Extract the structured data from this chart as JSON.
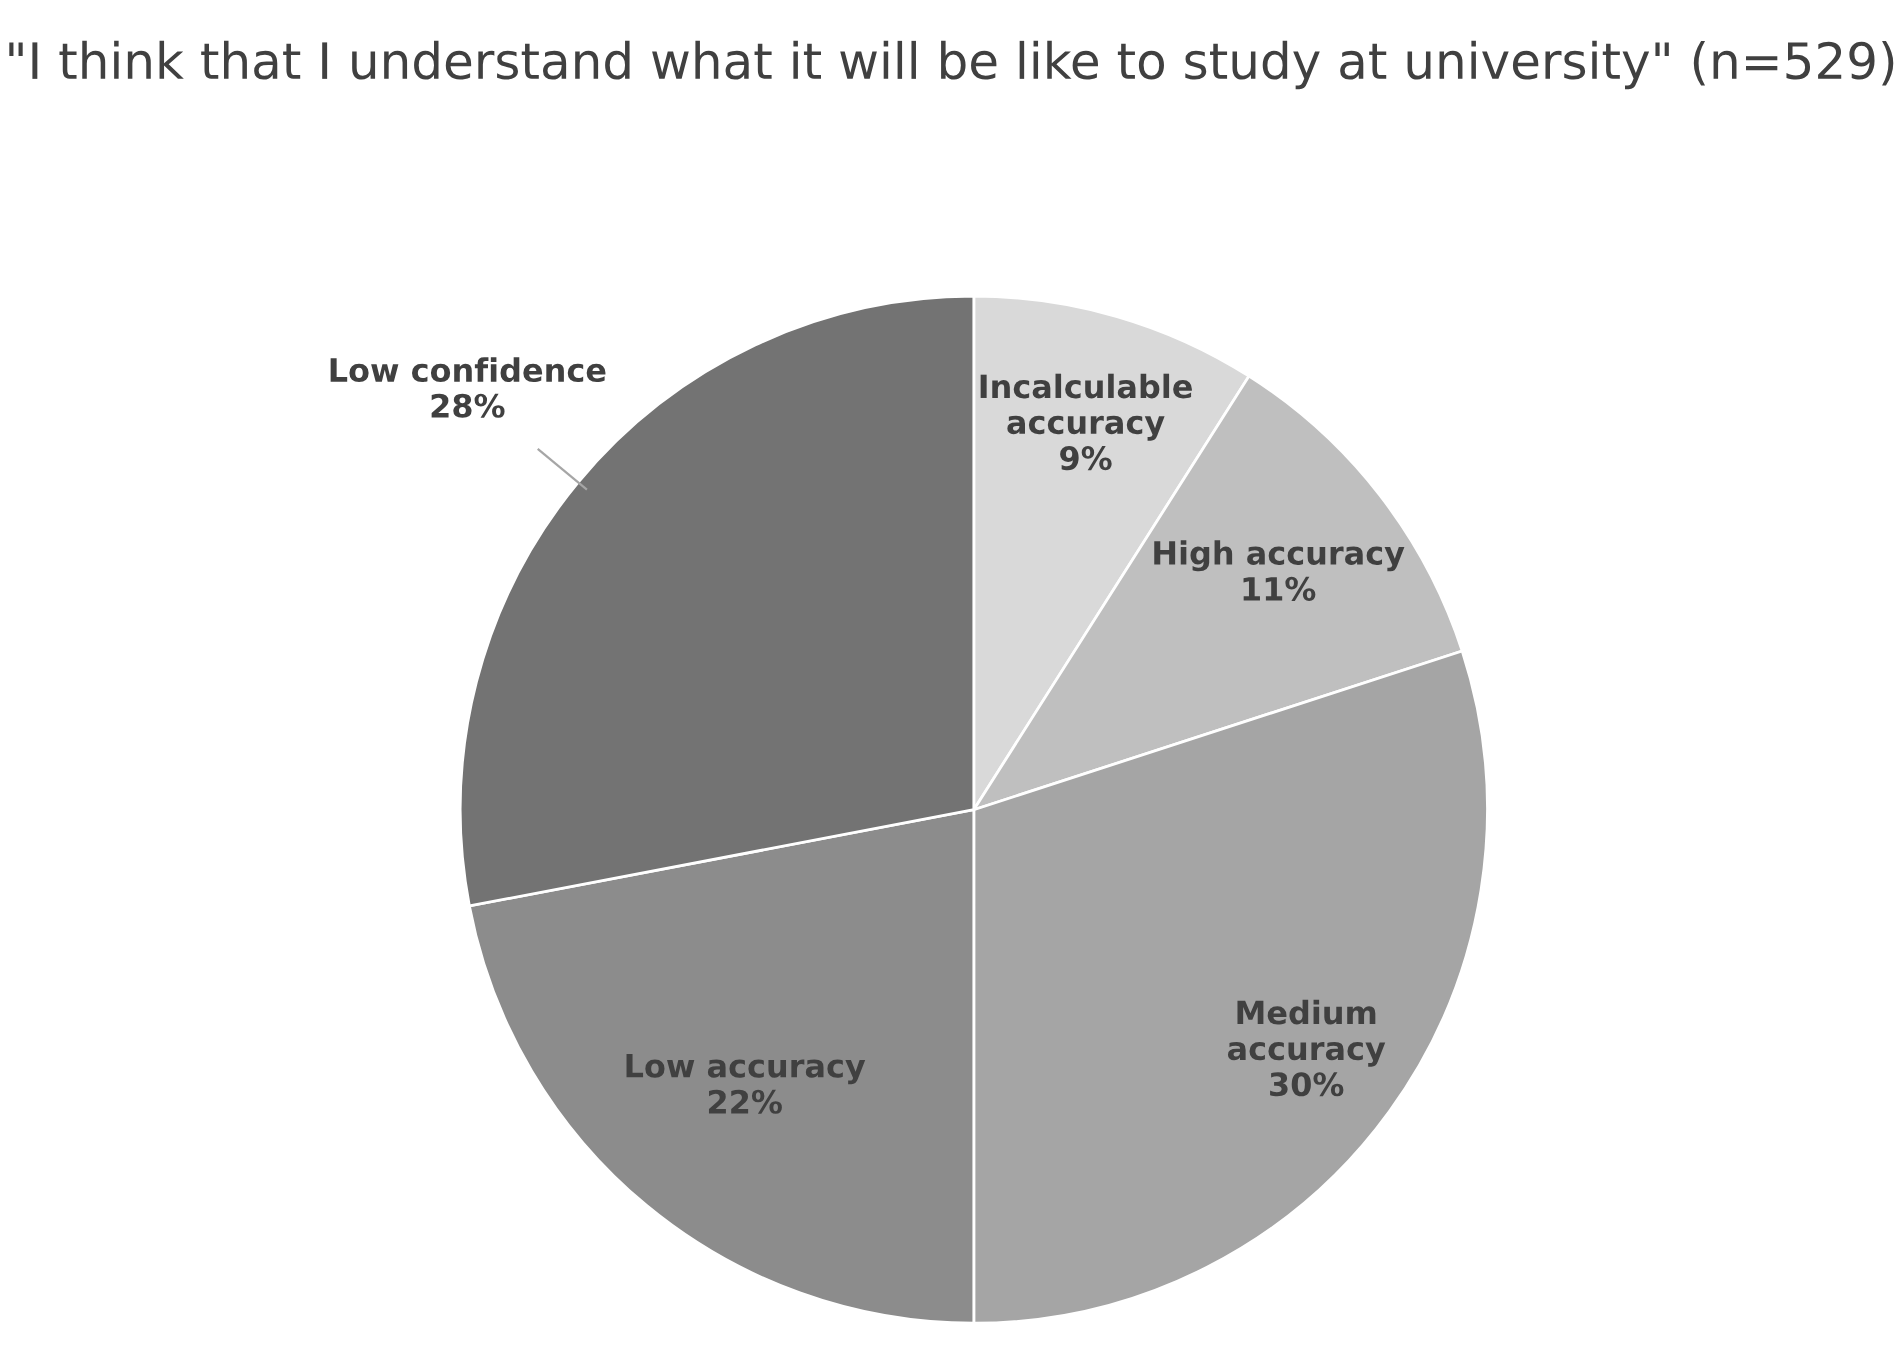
{
  "chart_data": {
    "type": "pie",
    "title": "\"I think that I understand what it will be like to study at university\" (n=529)",
    "categories": [
      "Incalculable accuracy",
      "High accuracy",
      "Medium accuracy",
      "Low accuracy",
      "Low confidence"
    ],
    "values": [
      9,
      11,
      30,
      22,
      28
    ],
    "colors": [
      "#d9d9d9",
      "#bfbfbf",
      "#a5a5a5",
      "#8c8c8c",
      "#737373"
    ],
    "value_labels": [
      "9%",
      "11%",
      "30%",
      "22%",
      "28%"
    ],
    "legend": false
  }
}
